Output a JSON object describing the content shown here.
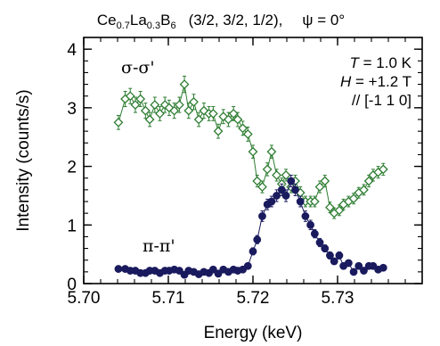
{
  "chart_data": {
    "type": "scatter",
    "title": {
      "compound": {
        "ce": "Ce",
        "ce_sub": "0.7",
        "la": "La",
        "la_sub": "0.3",
        "b": "B",
        "b_sub": "6"
      },
      "q": "(3/2, 3/2, 1/2),",
      "psi": "ψ = 0°"
    },
    "xlabel": "Energy  (keV)",
    "ylabel": "Intensity  (counts/s)",
    "xlim": [
      5.7,
      5.74
    ],
    "ylim": [
      0,
      4.2
    ],
    "xticks": [
      "5.70",
      "5.71",
      "5.72",
      "5.73"
    ],
    "xtick_values": [
      5.7,
      5.71,
      5.72,
      5.73
    ],
    "yticks": [
      "0",
      "1",
      "2",
      "3",
      "4"
    ],
    "ytick_values": [
      0,
      1,
      2,
      3,
      4
    ],
    "annotations": {
      "temperature": {
        "symbol": "T",
        "value": " = 1.0 K"
      },
      "field": {
        "symbol": "H",
        "value": " = +1.2 T"
      },
      "direction": "// [-1 1 0]"
    },
    "series": [
      {
        "name": "σ-σ'",
        "marker": "open-diamond",
        "color": "#2e7d32",
        "x": [
          5.7041,
          5.7049,
          5.7055,
          5.7061,
          5.7067,
          5.7073,
          5.7078,
          5.7084,
          5.709,
          5.7096,
          5.7101,
          5.7107,
          5.7113,
          5.7119,
          5.7124,
          5.713,
          5.7136,
          5.7142,
          5.7148,
          5.7153,
          5.7159,
          5.7165,
          5.7171,
          5.7177,
          5.7182,
          5.7188,
          5.7194,
          5.72,
          5.7205,
          5.7211,
          5.7217,
          5.7222,
          5.7228,
          5.7234,
          5.7239,
          5.7245,
          5.725,
          5.7256,
          5.7262,
          5.7268,
          5.7273,
          5.7279,
          5.7285,
          5.7291,
          5.7296,
          5.7302,
          5.7307,
          5.7313,
          5.7319,
          5.7325,
          5.7331,
          5.7337,
          5.7342,
          5.7348,
          5.7354
        ],
        "y": [
          2.75,
          3.15,
          3.2,
          3.05,
          3.15,
          2.95,
          2.8,
          3.05,
          2.9,
          3.05,
          3.0,
          2.95,
          3.05,
          3.4,
          2.95,
          3.1,
          2.8,
          2.95,
          2.9,
          2.9,
          2.6,
          2.85,
          2.8,
          2.9,
          2.8,
          2.65,
          2.55,
          2.25,
          1.75,
          1.65,
          1.95,
          2.25,
          1.85,
          1.7,
          1.85,
          1.65,
          1.75,
          1.55,
          1.4,
          1.4,
          1.4,
          1.65,
          1.75,
          1.3,
          1.2,
          1.25,
          1.35,
          1.4,
          1.45,
          1.55,
          1.6,
          1.75,
          1.85,
          1.9,
          1.95
        ],
        "err": [
          0.12,
          0.13,
          0.13,
          0.13,
          0.13,
          0.13,
          0.12,
          0.13,
          0.12,
          0.13,
          0.13,
          0.13,
          0.13,
          0.14,
          0.13,
          0.13,
          0.12,
          0.13,
          0.12,
          0.12,
          0.12,
          0.12,
          0.12,
          0.12,
          0.12,
          0.12,
          0.12,
          0.11,
          0.1,
          0.1,
          0.11,
          0.11,
          0.1,
          0.1,
          0.1,
          0.1,
          0.1,
          0.1,
          0.09,
          0.09,
          0.09,
          0.1,
          0.1,
          0.09,
          0.09,
          0.09,
          0.09,
          0.09,
          0.09,
          0.09,
          0.09,
          0.1,
          0.1,
          0.1,
          0.1
        ]
      },
      {
        "name": "π-π'",
        "marker": "filled-circle",
        "color": "#1a1a5e",
        "x": [
          5.7041,
          5.7049,
          5.7055,
          5.7061,
          5.7067,
          5.7073,
          5.7078,
          5.7084,
          5.709,
          5.7096,
          5.7101,
          5.7107,
          5.7113,
          5.7119,
          5.7124,
          5.713,
          5.7136,
          5.7142,
          5.7148,
          5.7153,
          5.7159,
          5.7165,
          5.7171,
          5.7177,
          5.7182,
          5.7188,
          5.7194,
          5.72,
          5.7205,
          5.7211,
          5.7217,
          5.7222,
          5.7228,
          5.7234,
          5.7239,
          5.7245,
          5.725,
          5.7256,
          5.7262,
          5.7268,
          5.7273,
          5.7279,
          5.7285,
          5.7291,
          5.7296,
          5.7302,
          5.7307,
          5.7313,
          5.7319,
          5.7325,
          5.7331,
          5.7337,
          5.7342,
          5.7348,
          5.7354
        ],
        "y": [
          0.25,
          0.25,
          0.22,
          0.22,
          0.18,
          0.18,
          0.22,
          0.22,
          0.18,
          0.22,
          0.22,
          0.24,
          0.22,
          0.15,
          0.22,
          0.2,
          0.16,
          0.2,
          0.18,
          0.24,
          0.17,
          0.24,
          0.2,
          0.24,
          0.22,
          0.24,
          0.3,
          0.55,
          0.75,
          1.15,
          1.35,
          1.4,
          1.5,
          1.6,
          1.5,
          1.75,
          1.6,
          1.4,
          1.15,
          1.0,
          0.85,
          0.7,
          0.6,
          0.48,
          0.38,
          0.48,
          0.3,
          0.35,
          0.2,
          0.3,
          0.22,
          0.3,
          0.3,
          0.24,
          0.27
        ],
        "err": [
          0.04,
          0.04,
          0.04,
          0.04,
          0.04,
          0.04,
          0.04,
          0.04,
          0.04,
          0.04,
          0.04,
          0.04,
          0.04,
          0.04,
          0.04,
          0.04,
          0.04,
          0.04,
          0.04,
          0.04,
          0.04,
          0.04,
          0.04,
          0.04,
          0.04,
          0.04,
          0.05,
          0.06,
          0.07,
          0.09,
          0.09,
          0.09,
          0.1,
          0.1,
          0.1,
          0.1,
          0.1,
          0.09,
          0.09,
          0.08,
          0.07,
          0.07,
          0.06,
          0.06,
          0.05,
          0.06,
          0.05,
          0.05,
          0.04,
          0.05,
          0.04,
          0.05,
          0.05,
          0.04,
          0.04
        ]
      }
    ],
    "series_labels": [
      "σ-σ'",
      "π-π'"
    ],
    "grid": false
  }
}
